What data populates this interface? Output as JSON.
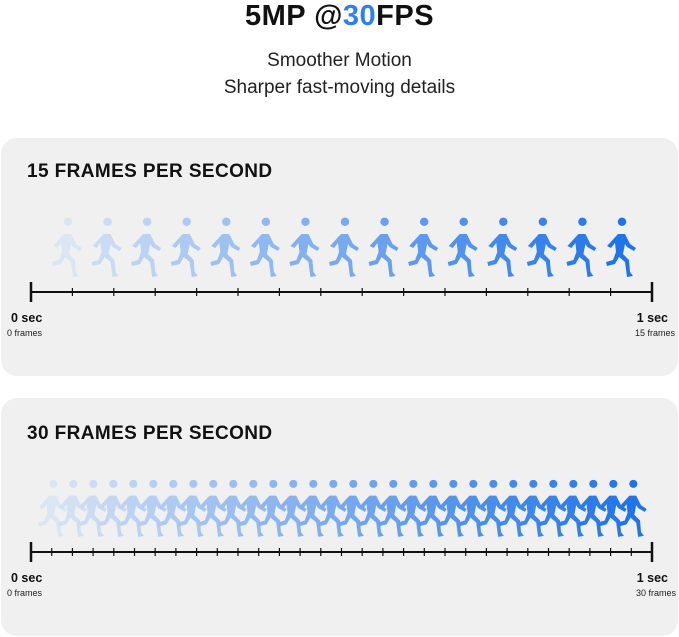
{
  "header": {
    "title_prefix": "5MP @",
    "title_highlight": "30",
    "title_suffix": "FPS",
    "subtitle_line1": "Smoother Motion",
    "subtitle_line2": "Sharper fast-moving details"
  },
  "colors": {
    "accent": "#2f7ff0",
    "panel_bg": "#f0f0f0",
    "runner_start": "#dbe6f5",
    "runner_end": "#1f74ea"
  },
  "panels": [
    {
      "title": "15 FRAMES PER SECOND",
      "frames": 15,
      "start_label": "0 sec",
      "start_sub": "0 frames",
      "end_label": "1 sec",
      "end_sub": "15 frames"
    },
    {
      "title": "30 FRAMES PER SECOND",
      "frames": 30,
      "start_label": "0 sec",
      "start_sub": "0 frames",
      "end_label": "1 sec",
      "end_sub": "30 frames"
    }
  ]
}
